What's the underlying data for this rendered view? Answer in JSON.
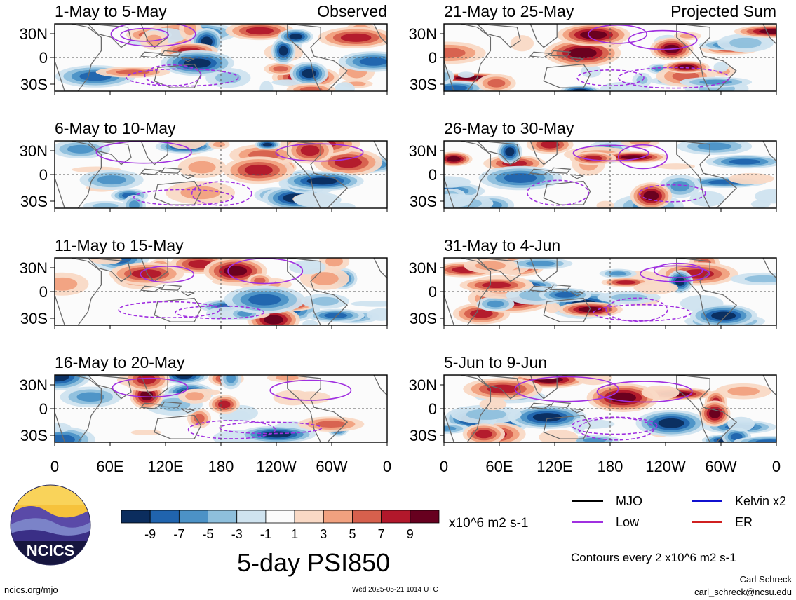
{
  "chart_data": [
    {
      "type": "heatmap",
      "title": "1-May to 5-May",
      "annotation": "Observed",
      "x_ticks": [
        "0",
        "60E",
        "120E",
        "180",
        "120W",
        "60W",
        "0"
      ],
      "y_ticks": [
        "30N",
        "0",
        "30S"
      ]
    },
    {
      "type": "heatmap",
      "title": "6-May to 10-May",
      "x_ticks": [
        "0",
        "60E",
        "120E",
        "180",
        "120W",
        "60W",
        "0"
      ],
      "y_ticks": [
        "30N",
        "0",
        "30S"
      ]
    },
    {
      "type": "heatmap",
      "title": "11-May to 15-May",
      "x_ticks": [
        "0",
        "60E",
        "120E",
        "180",
        "120W",
        "60W",
        "0"
      ],
      "y_ticks": [
        "30N",
        "0",
        "30S"
      ]
    },
    {
      "type": "heatmap",
      "title": "16-May to 20-May",
      "x_ticks": [
        "0",
        "60E",
        "120E",
        "180",
        "120W",
        "60W",
        "0"
      ],
      "y_ticks": [
        "30N",
        "0",
        "30S"
      ]
    },
    {
      "type": "heatmap",
      "title": "21-May to 25-May",
      "annotation": "Projected Sum",
      "x_ticks": [
        "0",
        "60E",
        "120E",
        "180",
        "120W",
        "60W",
        "0"
      ],
      "y_ticks": [
        "30N",
        "0",
        "30S"
      ]
    },
    {
      "type": "heatmap",
      "title": "26-May to 30-May",
      "x_ticks": [
        "0",
        "60E",
        "120E",
        "180",
        "120W",
        "60W",
        "0"
      ],
      "y_ticks": [
        "30N",
        "0",
        "30S"
      ]
    },
    {
      "type": "heatmap",
      "title": "31-May to 4-Jun",
      "x_ticks": [
        "0",
        "60E",
        "120E",
        "180",
        "120W",
        "60W",
        "0"
      ],
      "y_ticks": [
        "30N",
        "0",
        "30S"
      ]
    },
    {
      "type": "heatmap",
      "title": "5-Jun to 9-Jun",
      "x_ticks": [
        "0",
        "60E",
        "120E",
        "180",
        "120W",
        "60W",
        "0"
      ],
      "y_ticks": [
        "30N",
        "0",
        "30S"
      ]
    }
  ],
  "colorbar": {
    "labels": [
      "-9",
      "-7",
      "-5",
      "-3",
      "-1",
      "1",
      "3",
      "5",
      "7",
      "9"
    ],
    "colors": [
      "#0b2d5e",
      "#2064ae",
      "#4c92c6",
      "#8ebfdc",
      "#cfe3ef",
      "#fbfbfb",
      "#f9d9c5",
      "#f1a17f",
      "#d6604d",
      "#b2182b",
      "#67001f"
    ],
    "unit": "x10^6 m2 s-1"
  },
  "legend": [
    {
      "label": "MJO",
      "color": "#000000"
    },
    {
      "label": "Kelvin x2",
      "color": "#1010d0"
    },
    {
      "label": "Low",
      "color": "#a030e0"
    },
    {
      "label": "ER",
      "color": "#d02020"
    }
  ],
  "main_title": "5-day PSI850",
  "contours_note": "Contours every 2 x10^6 m2 s-1",
  "logo_text": "NCICS",
  "footer": {
    "left": "ncics.org/mjo",
    "timestamp": "Wed 2025-05-21 1014 UTC",
    "author": "Carl Schreck",
    "email": "carl_schreck@ncsu.edu"
  }
}
